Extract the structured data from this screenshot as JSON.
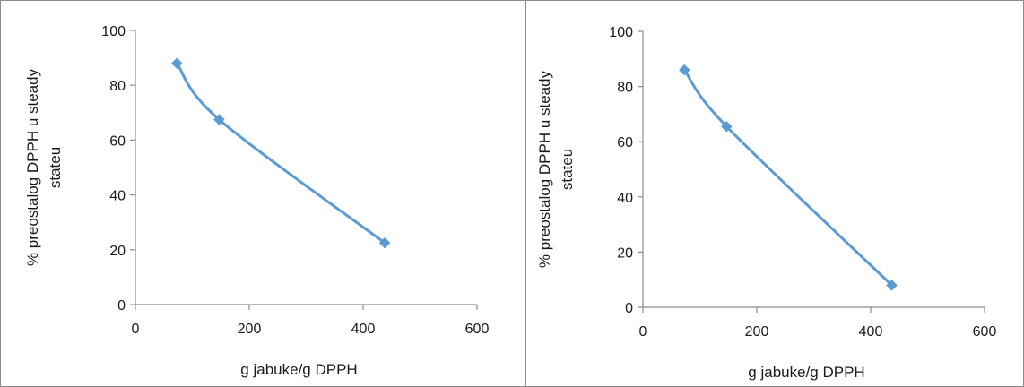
{
  "chart_data": [
    {
      "type": "line",
      "title": "",
      "xlabel": "g jabuke/g DPPH",
      "ylabel_lines": [
        "% preostalog DPPH u steady",
        "stateu"
      ],
      "xlim": [
        0,
        600
      ],
      "ylim": [
        0,
        100
      ],
      "x_ticks": [
        0,
        200,
        400,
        600
      ],
      "y_ticks": [
        0,
        20,
        40,
        60,
        80,
        100
      ],
      "series": [
        {
          "x": [
            73,
            147,
            438
          ],
          "y": [
            88,
            67.5,
            22.5
          ],
          "color": "#5b9bd5"
        }
      ],
      "grid": false,
      "legend": "none"
    },
    {
      "type": "line",
      "title": "",
      "xlabel": "g jabuke/g DPPH",
      "ylabel_lines": [
        "% preostalog DPPH u steady",
        "stateu"
      ],
      "xlim": [
        0,
        600
      ],
      "ylim": [
        0,
        100
      ],
      "x_ticks": [
        0,
        200,
        400,
        600
      ],
      "y_ticks": [
        0,
        20,
        40,
        60,
        80,
        100
      ],
      "series": [
        {
          "x": [
            73,
            147,
            437
          ],
          "y": [
            86,
            65.5,
            8
          ],
          "color": "#5b9bd5"
        }
      ],
      "grid": false,
      "legend": "none"
    }
  ]
}
